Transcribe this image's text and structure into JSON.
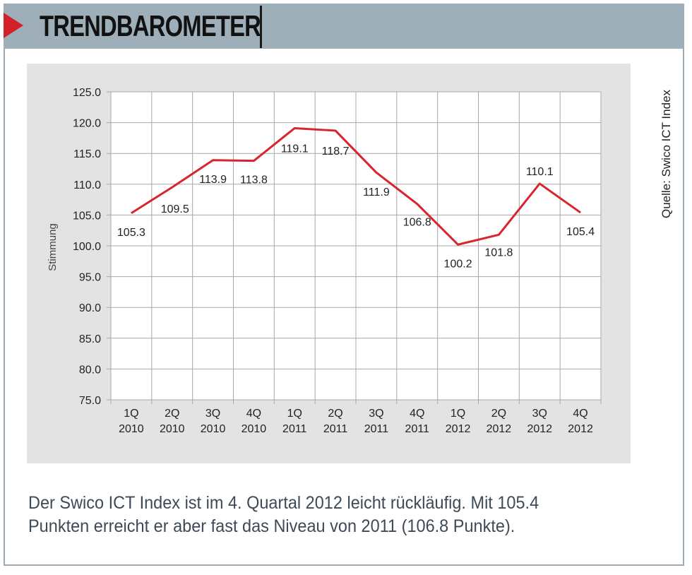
{
  "header": {
    "title": "TRENDBAROMETER",
    "accent_color": "#d3202a",
    "bar_color": "#9eafba"
  },
  "source": "Quelle: Swico ICT Index",
  "caption": {
    "line1": "Der Swico ICT Index ist im 4. Quartal 2012 leicht rückläufig. Mit 105.4",
    "line2": "Punkten erreicht er aber fast das Niveau von 2011 (106.8 Punkte)."
  },
  "chart_data": {
    "type": "line",
    "title": "",
    "xlabel": "",
    "ylabel": "Stimmung",
    "ylim": [
      75.0,
      125.0
    ],
    "yticks": [
      "75.0",
      "80.0",
      "85.0",
      "90.0",
      "95.0",
      "100.0",
      "105.0",
      "110.0",
      "115.0",
      "120.0",
      "125.0"
    ],
    "categories": [
      [
        "1Q",
        "2010"
      ],
      [
        "2Q",
        "2010"
      ],
      [
        "3Q",
        "2010"
      ],
      [
        "4Q",
        "2010"
      ],
      [
        "1Q",
        "2011"
      ],
      [
        "2Q",
        "2011"
      ],
      [
        "3Q",
        "2011"
      ],
      [
        "4Q",
        "2011"
      ],
      [
        "1Q",
        "2012"
      ],
      [
        "2Q",
        "2012"
      ],
      [
        "3Q",
        "2012"
      ],
      [
        "4Q",
        "2012"
      ]
    ],
    "values": [
      105.3,
      109.5,
      113.9,
      113.8,
      119.1,
      118.7,
      111.9,
      106.8,
      100.2,
      101.8,
      110.1,
      105.4
    ],
    "labels": [
      "105.3",
      "109.5",
      "113.9",
      "113.8",
      "119.1",
      "118.7",
      "111.9",
      "106.8",
      "100.2",
      "101.8",
      "110.1",
      "105.4"
    ],
    "line_color": "#d9232d",
    "grid": true,
    "legend": "none"
  }
}
